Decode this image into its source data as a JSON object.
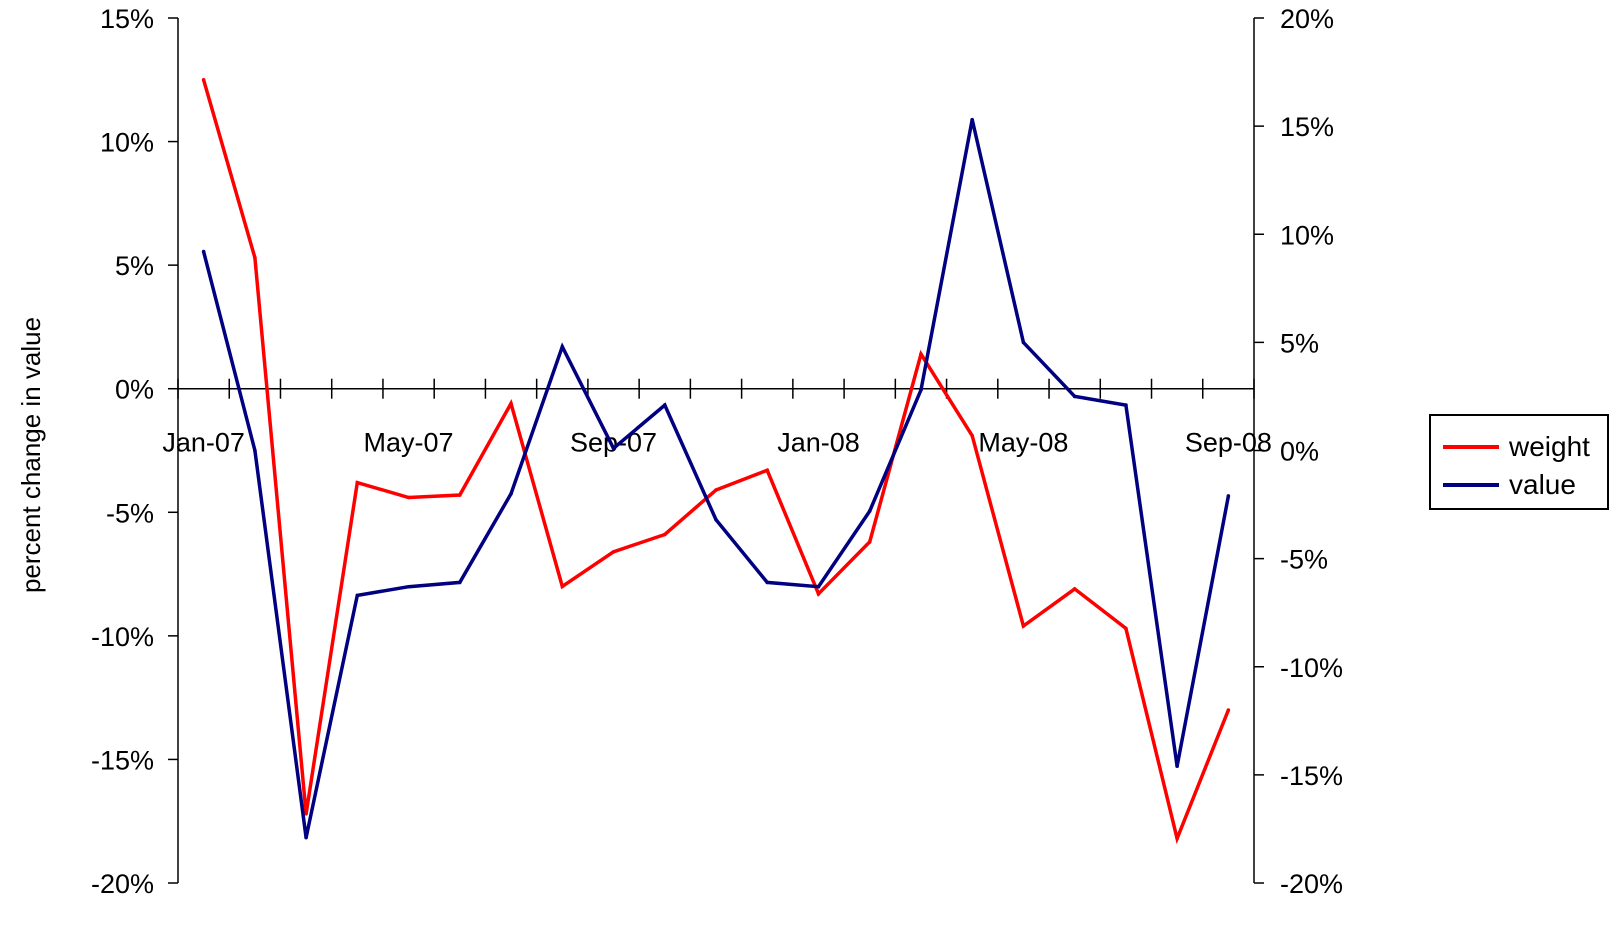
{
  "chart_data": {
    "type": "line",
    "title": "",
    "ylabel": "percent change in value",
    "y2label": "",
    "x": [
      "Jan-07",
      "Feb-07",
      "Mar-07",
      "Apr-07",
      "May-07",
      "Jun-07",
      "Jul-07",
      "Aug-07",
      "Sep-07",
      "Oct-07",
      "Nov-07",
      "Dec-07",
      "Jan-08",
      "Feb-08",
      "Mar-08",
      "Apr-08",
      "May-08",
      "Jun-08",
      "Jul-08",
      "Aug-08",
      "Sep-08"
    ],
    "x_tick_labels": [
      "Jan-07",
      "May-07",
      "Sep-07",
      "Jan-08",
      "May-08",
      "Sep-08"
    ],
    "ylim": [
      -20,
      15
    ],
    "y_ticks": [
      15,
      10,
      5,
      0,
      -5,
      -10,
      -15,
      -20
    ],
    "y_tick_labels": [
      "15%",
      "10%",
      "5%",
      "0%",
      "-5%",
      "-10%",
      "-15%",
      "-20%"
    ],
    "y2lim": [
      -20,
      20
    ],
    "y2_ticks": [
      20,
      15,
      10,
      5,
      0,
      -5,
      -10,
      -15,
      -20
    ],
    "y2_tick_labels": [
      "20%",
      "15%",
      "10%",
      "5%",
      "0%",
      "-5%",
      "-10%",
      "-15%",
      "-20%"
    ],
    "series": [
      {
        "name": "weight",
        "axis": "left",
        "color": "#ff0000",
        "values": [
          12.5,
          5.3,
          -17.2,
          -3.8,
          -4.4,
          -4.3,
          -0.6,
          -8.0,
          -6.6,
          -5.9,
          -4.1,
          -3.3,
          -8.3,
          -6.2,
          1.4,
          -1.9,
          -9.6,
          -8.1,
          -9.7,
          -18.2,
          -13.0
        ]
      },
      {
        "name": "value",
        "axis": "right",
        "color": "#000080",
        "values": [
          9.2,
          0.0,
          -17.9,
          -6.7,
          -6.3,
          -6.1,
          -2.0,
          4.8,
          0.1,
          2.1,
          -3.2,
          -6.1,
          -6.3,
          -2.8,
          2.8,
          15.3,
          5.0,
          2.5,
          2.1,
          -14.6,
          -2.1
        ]
      }
    ],
    "grid": false,
    "legend_position": "right"
  }
}
